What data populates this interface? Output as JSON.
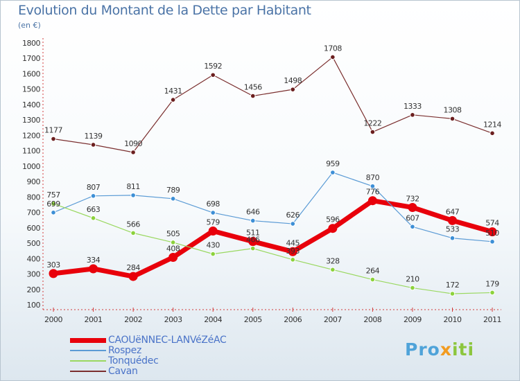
{
  "title": "Evolution du Montant de la Dette par Habitant",
  "unit": "(en €)",
  "brand": {
    "part1": "Pro",
    "part2": "x",
    "part3": "iti"
  },
  "chart_data": {
    "type": "line",
    "title": "Evolution du Montant de la Dette par Habitant",
    "ylabel": "(en €)",
    "xlabel": "",
    "categories": [
      "2000",
      "2001",
      "2002",
      "2003",
      "2004",
      "2005",
      "2006",
      "2007",
      "2008",
      "2009",
      "2010",
      "2011"
    ],
    "yticks": [
      100,
      200,
      300,
      400,
      500,
      600,
      700,
      800,
      900,
      1000,
      1100,
      1200,
      1300,
      1400,
      1500,
      1600,
      1700,
      1800
    ],
    "ylim": [
      100,
      1800
    ],
    "grid": false,
    "legend_position": "bottom-left",
    "series": [
      {
        "name": "CAOUëNNEC-LANVéZéAC",
        "color": "#e8000b",
        "width": 7,
        "marker_fill": "#e8000b",
        "marker_stroke": "#e8000b",
        "marker_r": 6,
        "values": [
          303,
          334,
          284,
          408,
          579,
          511,
          445,
          596,
          776,
          732,
          647,
          574
        ]
      },
      {
        "name": "Rospez",
        "color": "#5b9bd5",
        "width": 1.2,
        "marker_fill": "#3d8fd6",
        "marker_stroke": "#ffffff",
        "marker_r": 3.3,
        "values": [
          699,
          807,
          811,
          789,
          698,
          646,
          626,
          959,
          870,
          607,
          533,
          510
        ]
      },
      {
        "name": "Tonquédec",
        "color": "#9ad860",
        "width": 1.2,
        "marker_fill": "#8cd23c",
        "marker_stroke": "#ffffff",
        "marker_r": 3.3,
        "values": [
          757,
          663,
          566,
          505,
          430,
          466,
          393,
          328,
          264,
          210,
          172,
          179
        ]
      },
      {
        "name": "Cavan",
        "color": "#7a2e2e",
        "width": 1.2,
        "marker_fill": "#6b1f1f",
        "marker_stroke": "#ffffff",
        "marker_r": 3.3,
        "values": [
          1177,
          1139,
          1090,
          1431,
          1592,
          1456,
          1498,
          1708,
          1222,
          1333,
          1308,
          1214
        ]
      }
    ]
  }
}
